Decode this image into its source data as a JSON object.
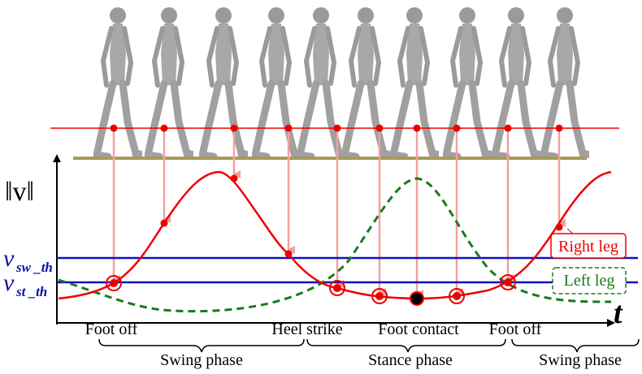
{
  "axis": {
    "y_label": "‖v‖",
    "x_label": "t"
  },
  "thresholds": [
    {
      "symbol": "v",
      "subscript": "sw _th"
    },
    {
      "symbol": "v",
      "subscript": "st _th"
    }
  ],
  "legend": [
    "Right leg",
    "Left leg"
  ],
  "events": [
    "Foot off",
    "Heel strike",
    "Foot contact",
    "Foot off"
  ],
  "phases": [
    "Swing phase",
    "Stance phase",
    "Swing phase"
  ]
}
